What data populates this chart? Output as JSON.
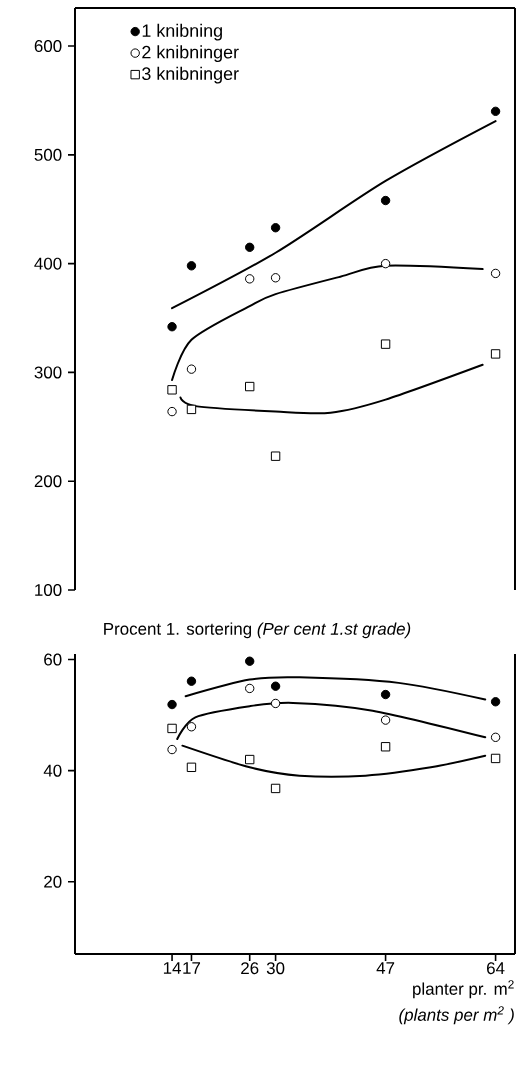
{
  "chart_data": [
    {
      "type": "scatter",
      "x": [
        14,
        17,
        26,
        30,
        47,
        64
      ],
      "xlim": [
        -1,
        67
      ],
      "ylim": [
        100,
        635
      ],
      "yticks": [
        100,
        200,
        300,
        400,
        500,
        600
      ],
      "tick_labels": "y",
      "legend": "top left",
      "series": [
        {
          "name": "1  knibning",
          "color": "#000000",
          "marker": "circle",
          "values": [
            342,
            398,
            415,
            433,
            458,
            540
          ]
        },
        {
          "name": "2  knibninger",
          "color": "#ffffff",
          "marker": "circle",
          "values": [
            264,
            303,
            386,
            387,
            400,
            391
          ]
        },
        {
          "name": "3  knibninger",
          "color": "#ffffff",
          "marker": "square",
          "values": [
            284,
            266,
            287,
            223,
            326,
            317
          ]
        },
        {
          "type": "line",
          "color": "#000000",
          "x": [
            14,
            30,
            47,
            64
          ],
          "values": [
            359,
            410,
            476,
            531
          ]
        },
        {
          "type": "line",
          "color": "#000000",
          "x": [
            14,
            17,
            26,
            30,
            40,
            47,
            62
          ],
          "values": [
            293,
            330,
            361,
            372,
            388,
            398,
            395
          ]
        },
        {
          "type": "line",
          "color": "#000000",
          "x": [
            15.3,
            17.6,
            30,
            38.5,
            47,
            62
          ],
          "values": [
            277,
            269,
            264,
            263,
            275,
            307
          ]
        }
      ]
    },
    {
      "type": "scatter",
      "title": "Procent 1. sortering *(Per cent 1.st grade)*",
      "xlabel": "planter pr. m$^{2}$",
      "annotations": [
        "(plants per m$^{2}$ )"
      ],
      "x": [
        14,
        17,
        26,
        30,
        47,
        64
      ],
      "xlim": [
        -1,
        67
      ],
      "xticks": [
        14,
        17,
        26,
        30,
        47,
        64
      ],
      "ylim": [
        7,
        61
      ],
      "yticks": [
        20,
        40,
        60
      ],
      "series": [
        {
          "color": "#000000",
          "marker": "circle",
          "values": [
            51.9,
            56.1,
            59.7,
            55.2,
            53.7,
            52.4
          ]
        },
        {
          "color": "#ffffff",
          "marker": "circle",
          "values": [
            43.8,
            47.9,
            54.8,
            52.1,
            49.1,
            46.0
          ]
        },
        {
          "color": "#ffffff",
          "marker": "square",
          "values": [
            47.6,
            40.6,
            42.0,
            36.8,
            44.3,
            42.2
          ]
        },
        {
          "type": "line",
          "color": "#000000",
          "x": [
            16.1,
            26,
            33.7,
            49,
            62.4
          ],
          "values": [
            53.4,
            56.4,
            56.8,
            55.8,
            52.8
          ]
        },
        {
          "type": "line",
          "color": "#000000",
          "x": [
            14.8,
            17.6,
            26,
            32.7,
            45,
            62.4
          ],
          "values": [
            45.7,
            49.6,
            51.6,
            52.2,
            50.8,
            46.0
          ]
        },
        {
          "type": "line",
          "color": "#000000",
          "x": [
            15.6,
            26,
            33.7,
            43.9,
            54,
            62.4
          ],
          "values": [
            44.5,
            40.6,
            39.1,
            39.1,
            40.6,
            42.7
          ]
        }
      ]
    }
  ]
}
